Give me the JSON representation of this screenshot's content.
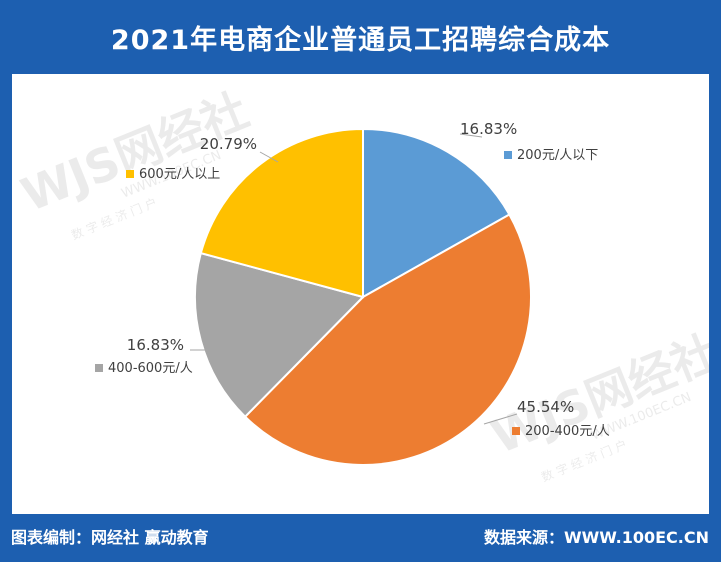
{
  "header": {
    "title": "2021年电商企业普通员工招聘综合成本"
  },
  "footer": {
    "left_text": "图表编制：网经社  赢动教育",
    "right_text": "数据来源：WWW.100EC.CN"
  },
  "watermark": {
    "logo_text": "WJS网经社",
    "domain_text": "WWW.100EC.CN",
    "sub_text": "数 字 经 济 门 户"
  },
  "colors": {
    "header_bg": "#1d5fb0",
    "slice_blue": "#5b9bd5",
    "slice_orange": "#ed7d31",
    "slice_gray": "#a5a5a5",
    "slice_yellow": "#ffc000"
  },
  "chart_data": {
    "type": "pie",
    "title": "2021年电商企业普通员工招聘综合成本",
    "legend": "per-slice labels",
    "slices": [
      {
        "label": "200元/人以下",
        "value": 16.83,
        "value_label": "16.83%",
        "color": "#5b9bd5"
      },
      {
        "label": "200-400元/人",
        "value": 45.54,
        "value_label": "45.54%",
        "color": "#ed7d31"
      },
      {
        "label": "400-600元/人",
        "value": 16.83,
        "value_label": "16.83%",
        "color": "#a5a5a5"
      },
      {
        "label": "600元/人以上",
        "value": 20.79,
        "value_label": "20.79%",
        "color": "#ffc000"
      }
    ]
  }
}
